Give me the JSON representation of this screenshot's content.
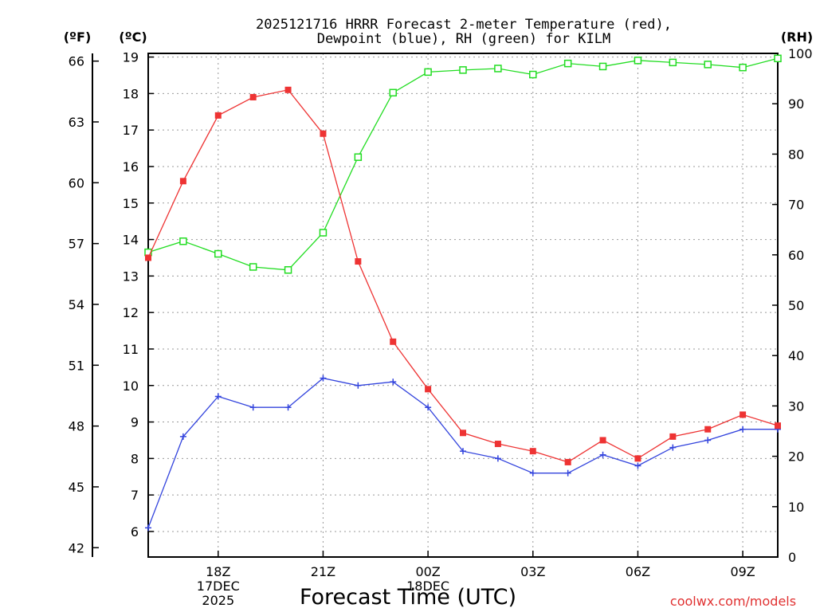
{
  "chart_data": {
    "type": "line",
    "title": "2025121716 HRRR Forecast 2-meter Temperature (red),",
    "subtitle": "Dewpoint (blue), RH (green) for KILM",
    "xlabel": "Forecast Time (UTC)",
    "watermark": "coolwx.com/models",
    "unit_labels": {
      "fahrenheit": "(ºF)",
      "celsius": "(ºC)",
      "rh": "(RH)"
    },
    "x_hours": [
      16,
      17,
      18,
      19,
      20,
      21,
      22,
      23,
      24,
      25,
      26,
      27,
      28,
      29,
      30,
      31,
      32,
      33,
      34
    ],
    "xlim": [
      16,
      34
    ],
    "x_ticks": [
      {
        "hour": 18,
        "label": "18Z",
        "date": "17DEC",
        "year": "2025"
      },
      {
        "hour": 21,
        "label": "21Z",
        "date": "",
        "year": ""
      },
      {
        "hour": 24,
        "label": "00Z",
        "date": "18DEC",
        "year": ""
      },
      {
        "hour": 27,
        "label": "03Z",
        "date": "",
        "year": ""
      },
      {
        "hour": 30,
        "label": "06Z",
        "date": "",
        "year": ""
      },
      {
        "hour": 33,
        "label": "09Z",
        "date": "",
        "year": ""
      }
    ],
    "celsius_axis": {
      "lim": [
        5.3,
        19.1
      ],
      "ticks": [
        6,
        7,
        8,
        9,
        10,
        11,
        12,
        13,
        14,
        15,
        16,
        17,
        18,
        19
      ]
    },
    "fahrenheit_axis": {
      "ticks": [
        42,
        45,
        48,
        51,
        54,
        57,
        60,
        63,
        66
      ]
    },
    "rh_axis": {
      "lim": [
        0,
        100
      ],
      "ticks": [
        0,
        10,
        20,
        30,
        40,
        50,
        60,
        70,
        80,
        90,
        100
      ]
    },
    "series": [
      {
        "name": "Temperature",
        "axis": "celsius",
        "color": "#ee3333",
        "marker": "filled-square",
        "values": [
          13.5,
          15.6,
          17.4,
          17.9,
          18.1,
          16.9,
          13.4,
          11.2,
          9.9,
          8.7,
          8.4,
          8.2,
          7.9,
          8.5,
          8.0,
          8.6,
          8.8,
          9.2,
          8.9
        ]
      },
      {
        "name": "Dewpoint",
        "axis": "celsius",
        "color": "#3344dd",
        "marker": "plus",
        "values": [
          6.1,
          8.6,
          9.7,
          9.4,
          9.4,
          10.2,
          10.0,
          10.1,
          9.4,
          8.2,
          8.0,
          7.6,
          7.6,
          8.1,
          7.8,
          8.3,
          8.5,
          8.8,
          8.8
        ]
      },
      {
        "name": "RH",
        "axis": "rh",
        "color": "#22dd22",
        "marker": "open-square",
        "values": [
          60.5,
          62.7,
          60.2,
          57.6,
          57.0,
          64.4,
          79.4,
          92.2,
          96.3,
          96.7,
          97.0,
          95.8,
          98.0,
          97.4,
          98.6,
          98.2,
          97.8,
          97.2,
          99.0
        ]
      }
    ]
  }
}
